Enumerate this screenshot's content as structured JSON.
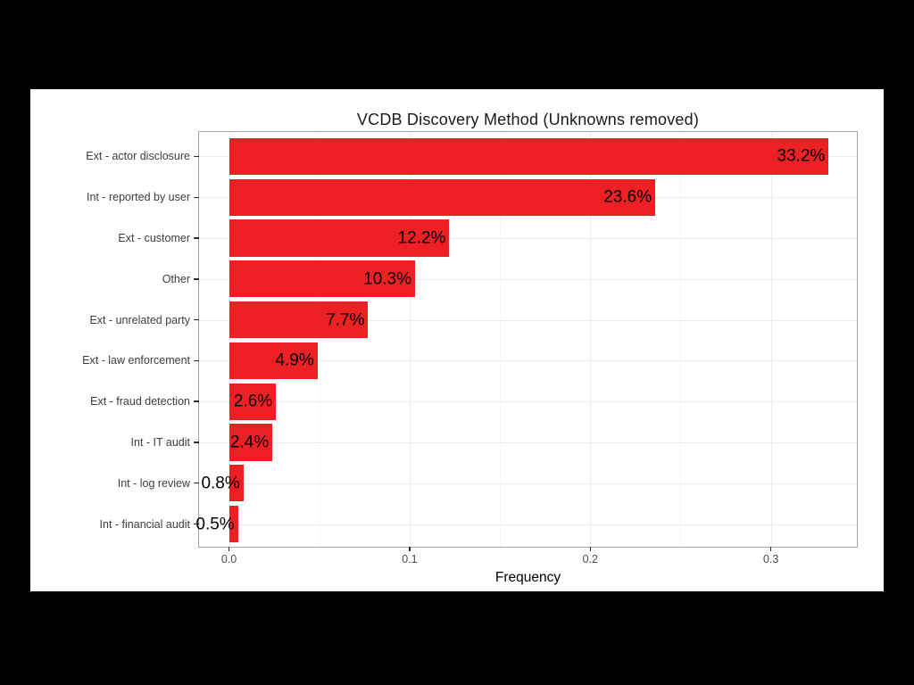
{
  "slide": {
    "background_color": "#000000",
    "canvas_color": "#ffffff"
  },
  "chart_data": {
    "type": "bar",
    "orientation": "horizontal",
    "title": "VCDB Discovery Method (Unknowns removed)",
    "xlabel": "Frequency",
    "ylabel": "",
    "categories": [
      "Ext - actor disclosure",
      "Int - reported by user",
      "Ext - customer",
      "Other",
      "Ext - unrelated party",
      "Ext - law enforcement",
      "Ext - fraud detection",
      "Int - IT audit",
      "Int - log review",
      "Int - financial audit"
    ],
    "values": [
      0.332,
      0.236,
      0.122,
      0.103,
      0.077,
      0.049,
      0.026,
      0.024,
      0.008,
      0.005
    ],
    "value_labels": [
      "33.2%",
      "23.6%",
      "12.2%",
      "10.3%",
      "7.7%",
      "4.9%",
      "2.6%",
      "2.4%",
      "0.8%",
      "0.5%"
    ],
    "x_ticks": [
      {
        "value": 0.0,
        "label": "0.0"
      },
      {
        "value": 0.1,
        "label": "0.1"
      },
      {
        "value": 0.2,
        "label": "0.2"
      },
      {
        "value": 0.3,
        "label": "0.3"
      }
    ],
    "x_minor_ticks": [
      0.05,
      0.15,
      0.25,
      0.35
    ],
    "xlim": [
      -0.0166,
      0.3486
    ],
    "grid": "major and minor vertical lines, major horizontal lines at category centers",
    "legend": "none",
    "colors": {
      "bar": "#ed2024",
      "value_label": "#000000",
      "category_label": "#3d3d3d",
      "tick_label": "#4a4a4a",
      "panel_border": "#a3a3a3",
      "grid_major": "#ebebeb",
      "grid_minor": "#f6f6f6"
    }
  }
}
